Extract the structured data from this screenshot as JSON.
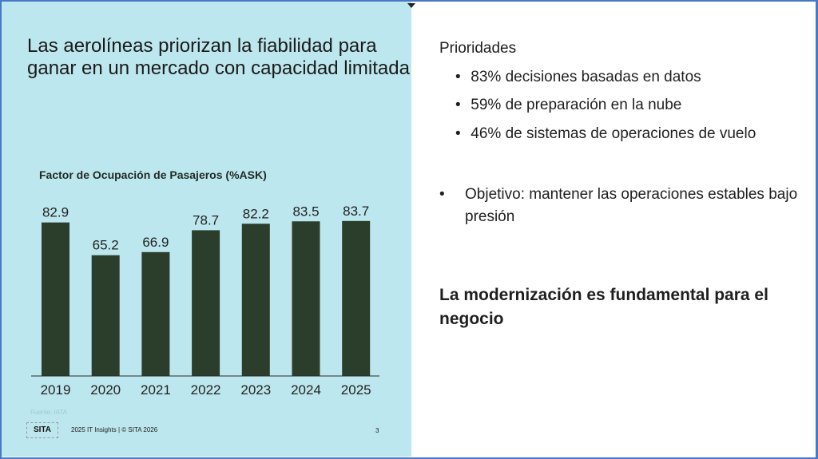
{
  "left": {
    "title": "Las aerolíneas priorizan la fiabilidad para ganar en un mercado con capacidad limitada",
    "source": "Fuente: IATA",
    "logo_text": "SITA",
    "footer": "2025 IT Insights | © SITA 2026",
    "page_number": "3"
  },
  "chart_data": {
    "type": "bar",
    "title": "Factor de Ocupación de Pasajeros (%ASK)",
    "categories": [
      "2019",
      "2020",
      "2021",
      "2022",
      "2023",
      "2024",
      "2025"
    ],
    "values": [
      82.9,
      65.2,
      66.9,
      78.7,
      82.2,
      83.5,
      83.7
    ],
    "value_labels": [
      "82.9",
      "65.2",
      "66.9",
      "78.7",
      "82.2",
      "83.5",
      "83.7"
    ],
    "ylim": [
      0,
      100
    ],
    "xlabel": "",
    "ylabel": "",
    "grid": false,
    "bar_color": "#2b3d2b"
  },
  "right": {
    "heading": "Prioridades",
    "bullets": [
      "83% decisiones basadas en datos",
      "59% de preparación en la nube",
      "46% de sistemas de operaciones de vuelo"
    ],
    "objective": "Objetivo: mantener las operaciones estables bajo presión",
    "conclusion": "La modernización es fundamental para el negocio",
    "bullet_char": "•"
  }
}
